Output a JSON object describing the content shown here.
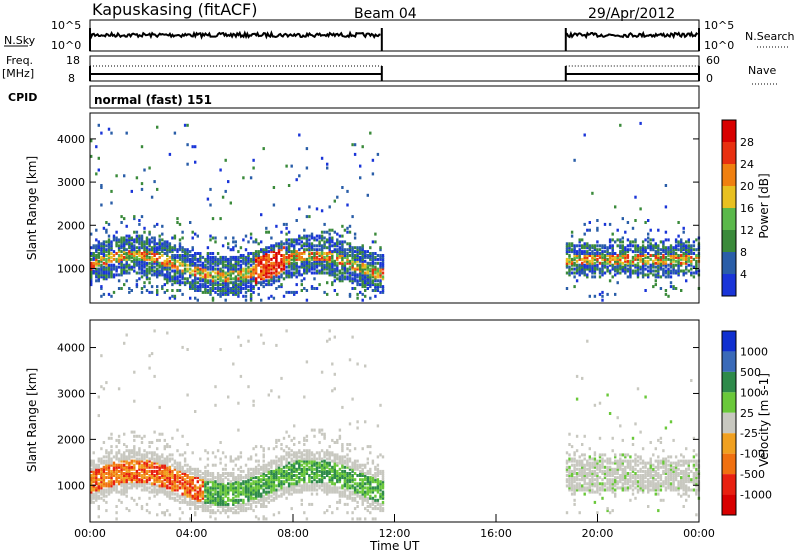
{
  "header": {
    "station": "Kapuskasing (fitACF)",
    "beam": "Beam 04",
    "date": "29/Apr/2012"
  },
  "noise_panel": {
    "left_label": "N.Sky",
    "right_label": "N.Search",
    "left_ticks": [
      "10^5",
      "10^0"
    ],
    "right_ticks": [
      "10^5",
      "10^0"
    ]
  },
  "freq_panel": {
    "left_label": "Freq.",
    "left_unit": "[MHz]",
    "right_label": "Nave",
    "left_ticks": [
      "18",
      "8"
    ],
    "right_ticks": [
      "60",
      "0"
    ]
  },
  "cpid_panel": {
    "label": "CPID",
    "mode": "normal (fast) 151"
  },
  "colors": {
    "scatter_blue": "#1a35d8",
    "ground_gray": "#b8b8b0"
  },
  "chart_data": [
    {
      "type": "heatmap",
      "name": "power",
      "ylabel": "Slant Range [km]",
      "ylim": [
        200,
        4600
      ],
      "yticks": [
        "1000",
        "2000",
        "3000",
        "4000"
      ],
      "x_range_hours": [
        0,
        24
      ],
      "data_coverage_hours": [
        [
          0,
          11.5
        ],
        [
          18.75,
          24
        ]
      ],
      "colorbar": {
        "label": "Power [dB]",
        "ticks": [
          "4",
          "8",
          "12",
          "16",
          "20",
          "24",
          "28"
        ],
        "colors": [
          "#1a35d8",
          "#2a5ea8",
          "#3a8a3a",
          "#5ab84a",
          "#e8c020",
          "#f08010",
          "#e83010",
          "#d80000"
        ]
      },
      "features": [
        {
          "x": [
            0.3,
            11.5
          ],
          "y": [
            700,
            2200
          ],
          "level": "blue-green",
          "desc_band": "main echo band"
        },
        {
          "x": [
            6.5,
            7.5
          ],
          "y": [
            1000,
            1700
          ],
          "level": "red"
        },
        {
          "x": [
            1.1,
            2.0
          ],
          "y": [
            600,
            800
          ],
          "level": "orange"
        },
        {
          "x": [
            18.75,
            24
          ],
          "y": [
            900,
            1600
          ],
          "level": "blue-green"
        }
      ]
    },
    {
      "type": "heatmap",
      "name": "velocity",
      "ylabel": "Slant Range [km]",
      "ylim": [
        200,
        4600
      ],
      "yticks": [
        "1000",
        "2000",
        "3000",
        "4000"
      ],
      "x_range_hours": [
        0,
        24
      ],
      "colorbar": {
        "label": "Velocity [m s-1]",
        "ticks": [
          "1000",
          "500",
          "100",
          "25",
          "-25",
          "-100",
          "-500",
          "-1000"
        ],
        "colors": [
          "#1030d0",
          "#3a6ab8",
          "#2e8a4a",
          "#6ac83a",
          "#c8c8c0",
          "#f0a020",
          "#f07010",
          "#e82010",
          "#d80000"
        ]
      },
      "xlabel": "Time UT",
      "xticks": [
        "00:00",
        "04:00",
        "08:00",
        "12:00",
        "16:00",
        "20:00",
        "00:00"
      ]
    }
  ]
}
